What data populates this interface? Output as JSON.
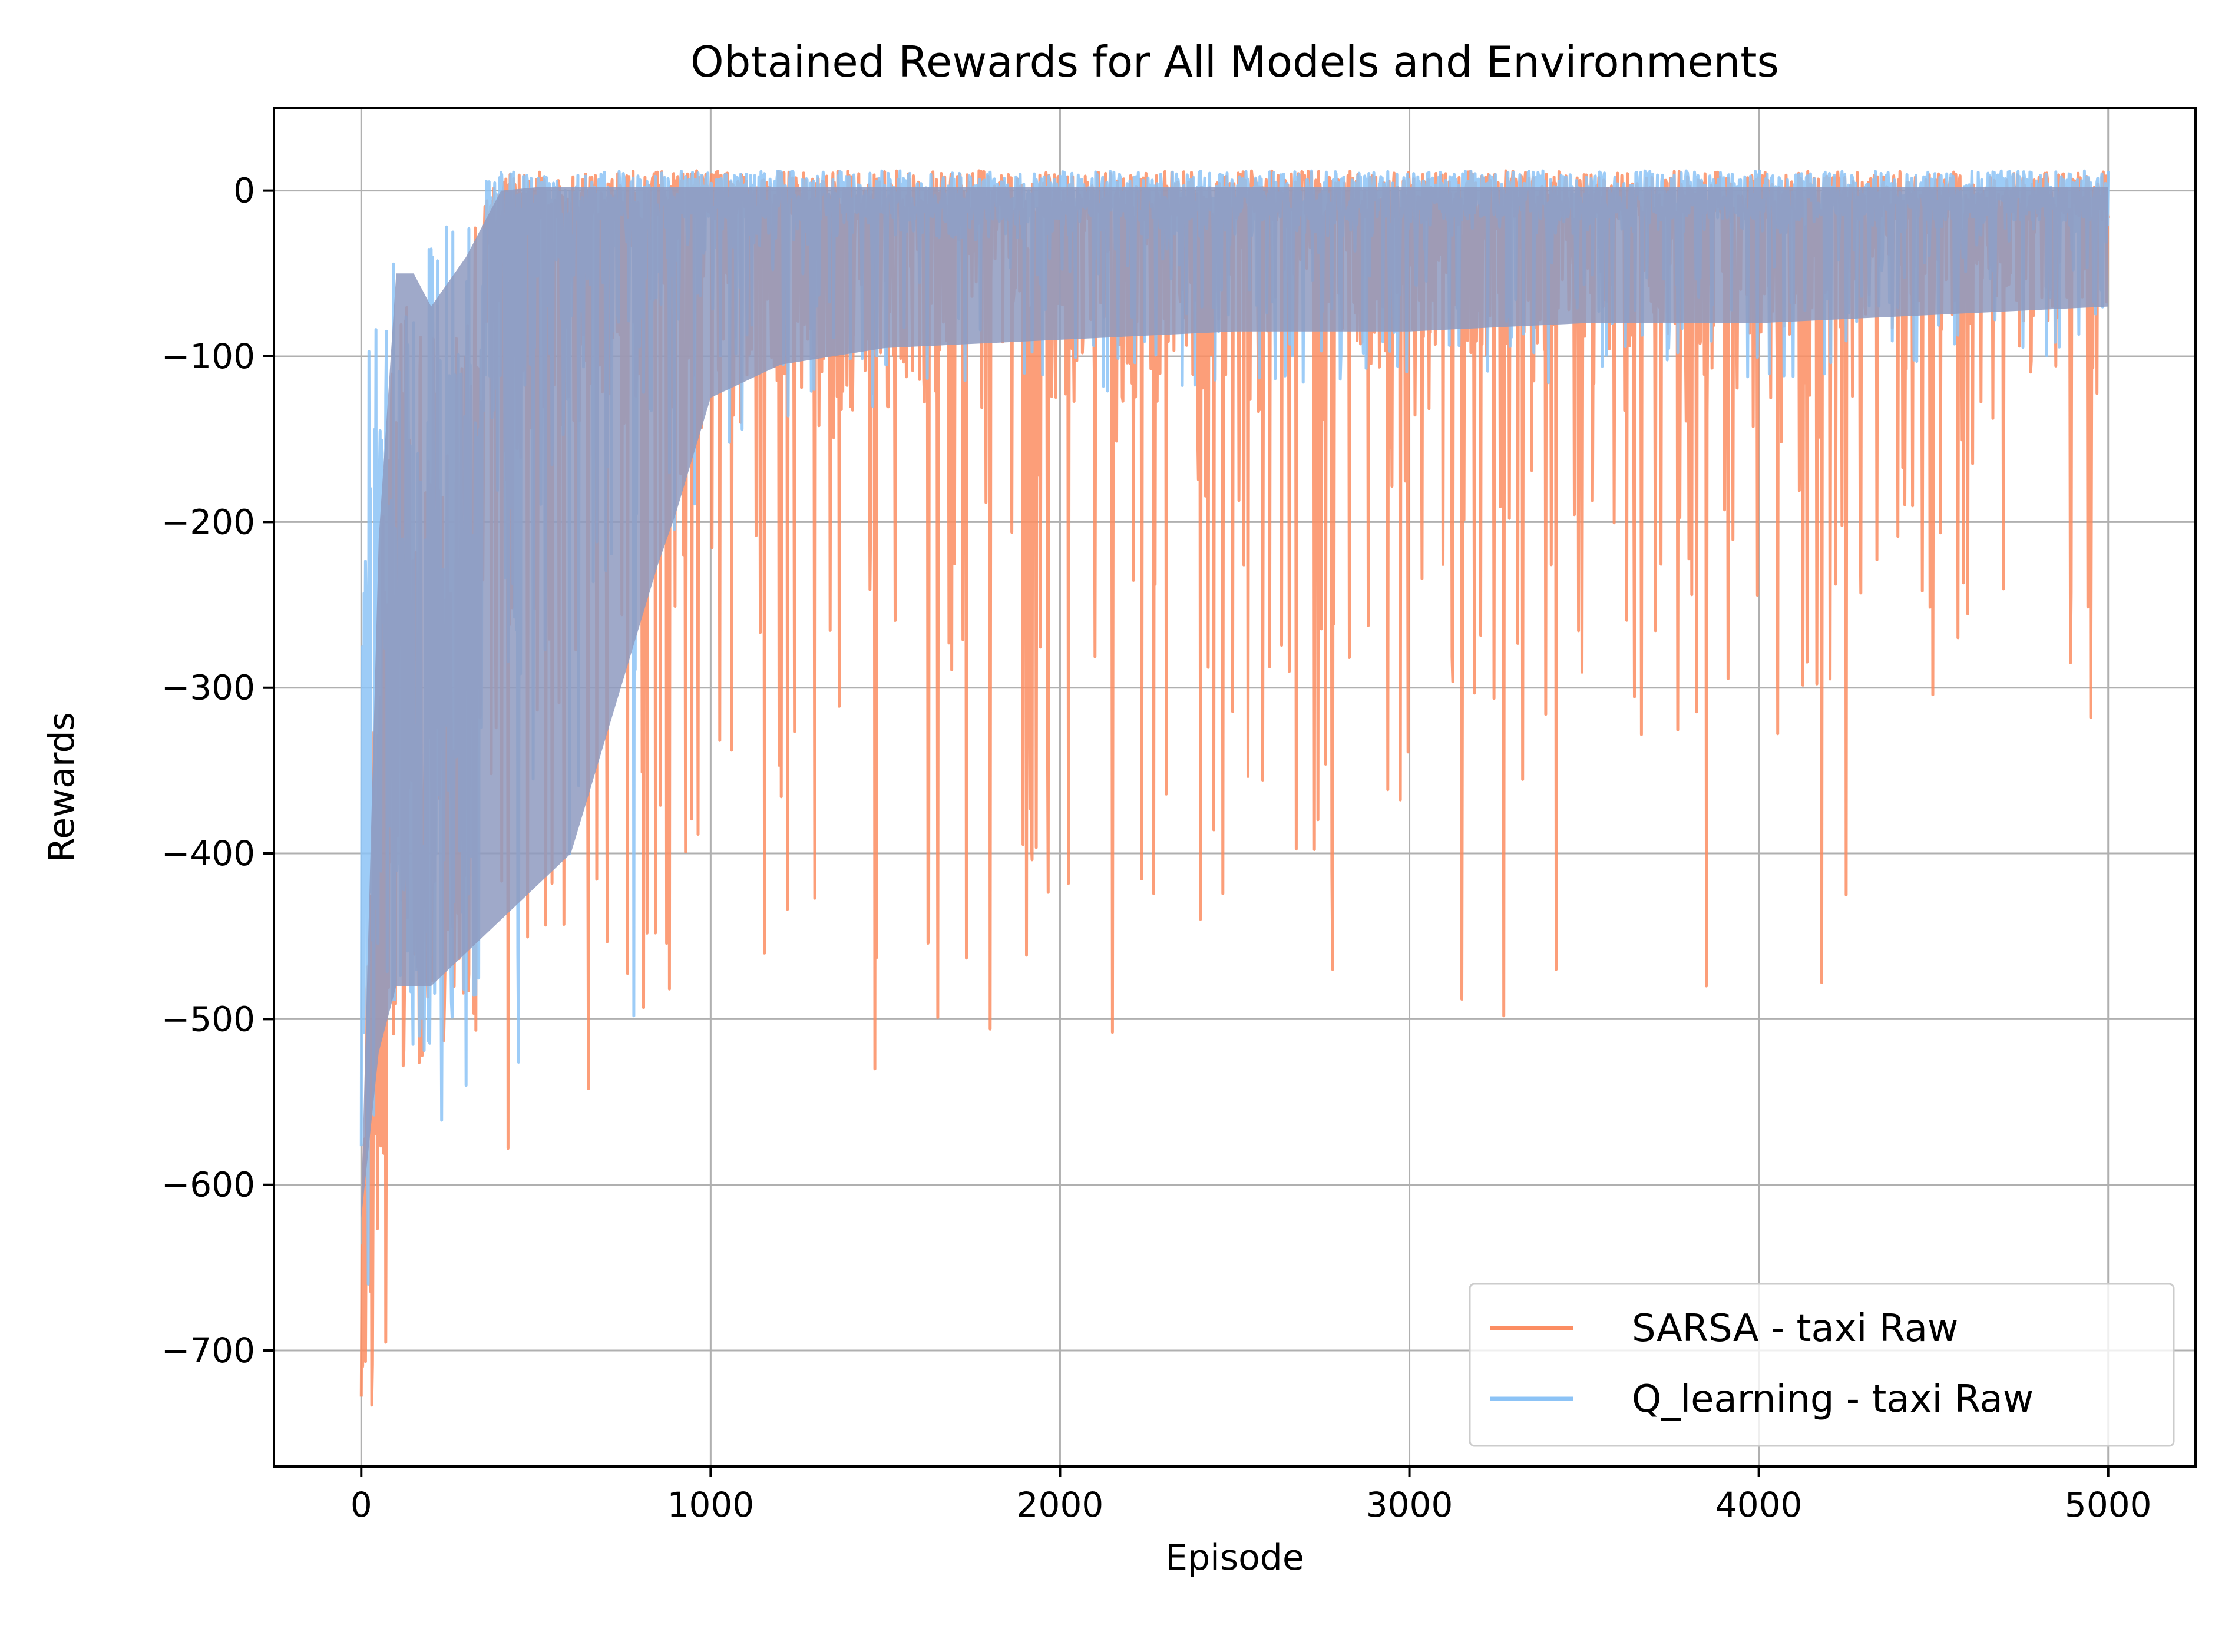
{
  "chart_data": {
    "type": "line",
    "title": "Obtained Rewards for All Models and Environments",
    "xlabel": "Episode",
    "ylabel": "Rewards",
    "xlim": [
      -250,
      5250
    ],
    "ylim": [
      -770,
      50
    ],
    "xticks": [
      0,
      1000,
      2000,
      3000,
      4000,
      5000
    ],
    "yticks": [
      0,
      -100,
      -200,
      -300,
      -400,
      -500,
      -600,
      -700
    ],
    "xtick_labels": [
      "0",
      "1000",
      "2000",
      "3000",
      "4000",
      "5000"
    ],
    "ytick_labels": [
      "0",
      "−100",
      "−200",
      "−300",
      "−400",
      "−500",
      "−600",
      "−700"
    ],
    "grid": true,
    "legend_position": "lower-right",
    "x": [
      0,
      50,
      100,
      150,
      200,
      300,
      400,
      500,
      600,
      800,
      1000,
      1200,
      1500,
      2000,
      2500,
      3000,
      3500,
      4000,
      4500,
      5000
    ],
    "series": [
      {
        "name": "SARSA - taxi Raw",
        "color": "#fc8d62",
        "upper": [
          -600,
          -200,
          -30,
          -40,
          -60,
          -30,
          10,
          12,
          12,
          12,
          12,
          12,
          12,
          12,
          12,
          12,
          12,
          12,
          12,
          12
        ],
        "lower": [
          -730,
          -700,
          -530,
          -530,
          -520,
          -510,
          -580,
          -560,
          -520,
          -500,
          -490,
          -470,
          -470,
          -470,
          -440,
          -400,
          -360,
          -330,
          -310,
          -280
        ],
        "spikes": [
          [
            30,
            -733
          ],
          [
            70,
            -695
          ],
          [
            420,
            -578
          ],
          [
            650,
            -542
          ],
          [
            1470,
            -530
          ],
          [
            1650,
            -499
          ],
          [
            1800,
            -506
          ],
          [
            2150,
            -508
          ],
          [
            2780,
            -470
          ],
          [
            3150,
            -488
          ],
          [
            3270,
            -498
          ],
          [
            3420,
            -470
          ],
          [
            3850,
            -480
          ],
          [
            4180,
            -478
          ],
          [
            4250,
            -425
          ],
          [
            4950,
            -318
          ]
        ]
      },
      {
        "name": "Q_learning - taxi Raw",
        "color": "#8cc3f6",
        "upper": [
          -130,
          -45,
          -40,
          -40,
          -20,
          0,
          12,
          12,
          12,
          12,
          12,
          12,
          12,
          12,
          12,
          12,
          12,
          12,
          12,
          12
        ],
        "lower": [
          -660,
          -560,
          -520,
          -520,
          -520,
          -500,
          -480,
          -460,
          -440,
          -300,
          -160,
          -140,
          -130,
          -125,
          -120,
          -120,
          -115,
          -115,
          -110,
          -105
        ],
        "spikes": [
          [
            20,
            -660
          ],
          [
            230,
            -561
          ],
          [
            300,
            -540
          ],
          [
            450,
            -526
          ],
          [
            780,
            -498
          ]
        ]
      }
    ],
    "overlap_color": "#8e9abf"
  }
}
